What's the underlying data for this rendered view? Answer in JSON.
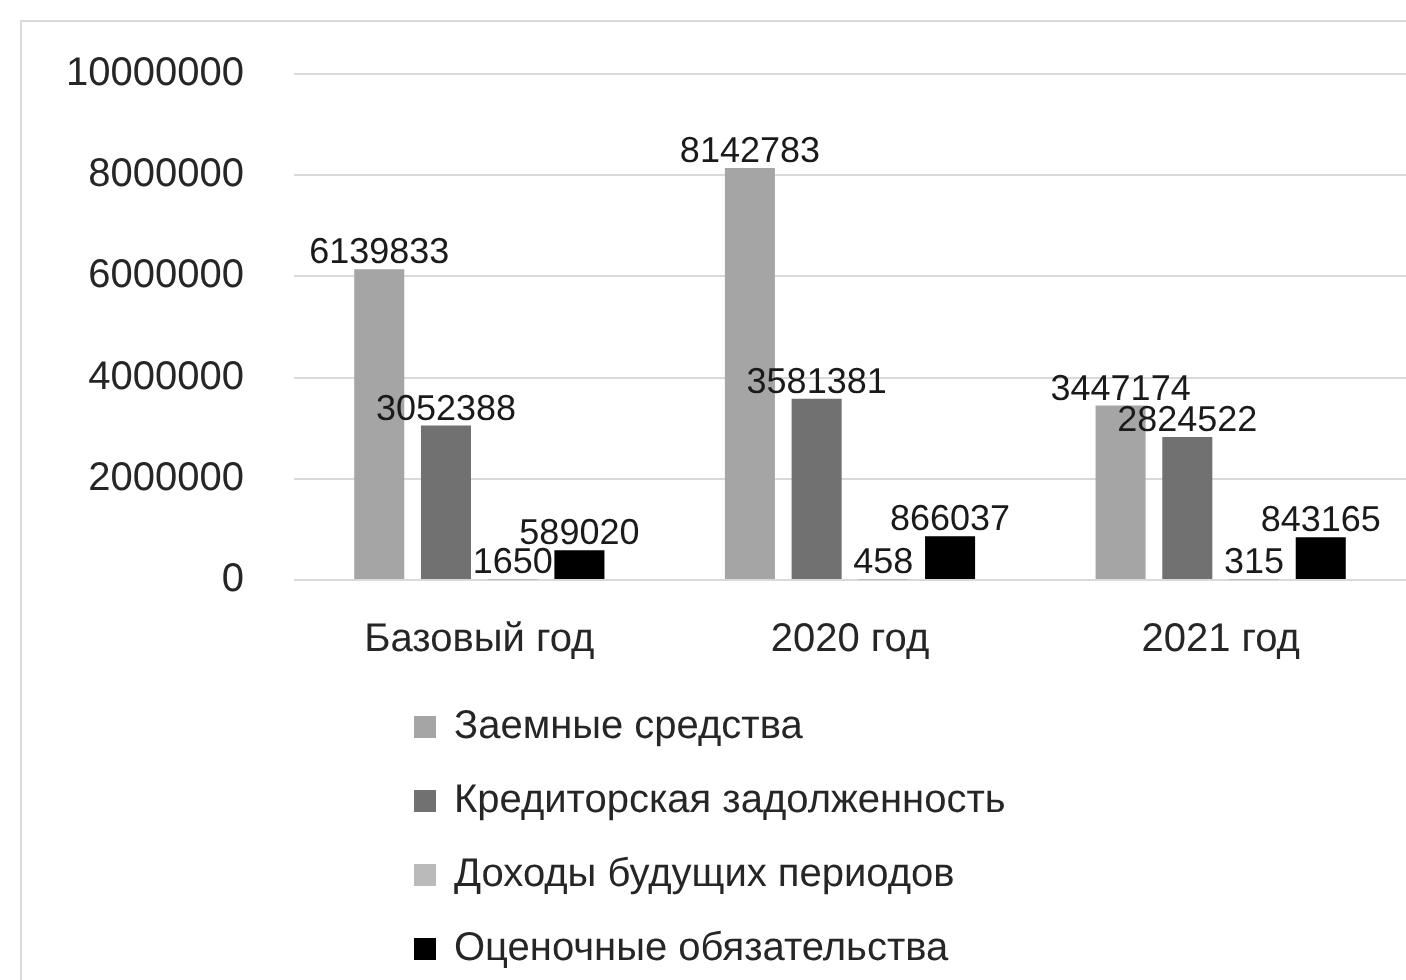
{
  "chart_data": {
    "type": "bar",
    "categories": [
      "Базовый год",
      "2020 год",
      "2021 год"
    ],
    "series": [
      {
        "name": "Заемные средства",
        "color": "#a5a5a5",
        "values": [
          6139833,
          8142783,
          3447174
        ]
      },
      {
        "name": "Кредиторская задолженность",
        "color": "#717171",
        "values": [
          3052388,
          3581381,
          2824522
        ]
      },
      {
        "name": "Доходы будущих периодов",
        "color": "#bababa",
        "values": [
          1650,
          458,
          315
        ]
      },
      {
        "name": "Оценочные обязательства",
        "color": "#000000",
        "values": [
          589020,
          866037,
          843165
        ]
      }
    ],
    "ylim": [
      0,
      10000000
    ],
    "yticks": [
      0,
      2000000,
      4000000,
      6000000,
      8000000,
      10000000
    ],
    "grid": "y",
    "legend": "bottom",
    "data_labels": true
  }
}
